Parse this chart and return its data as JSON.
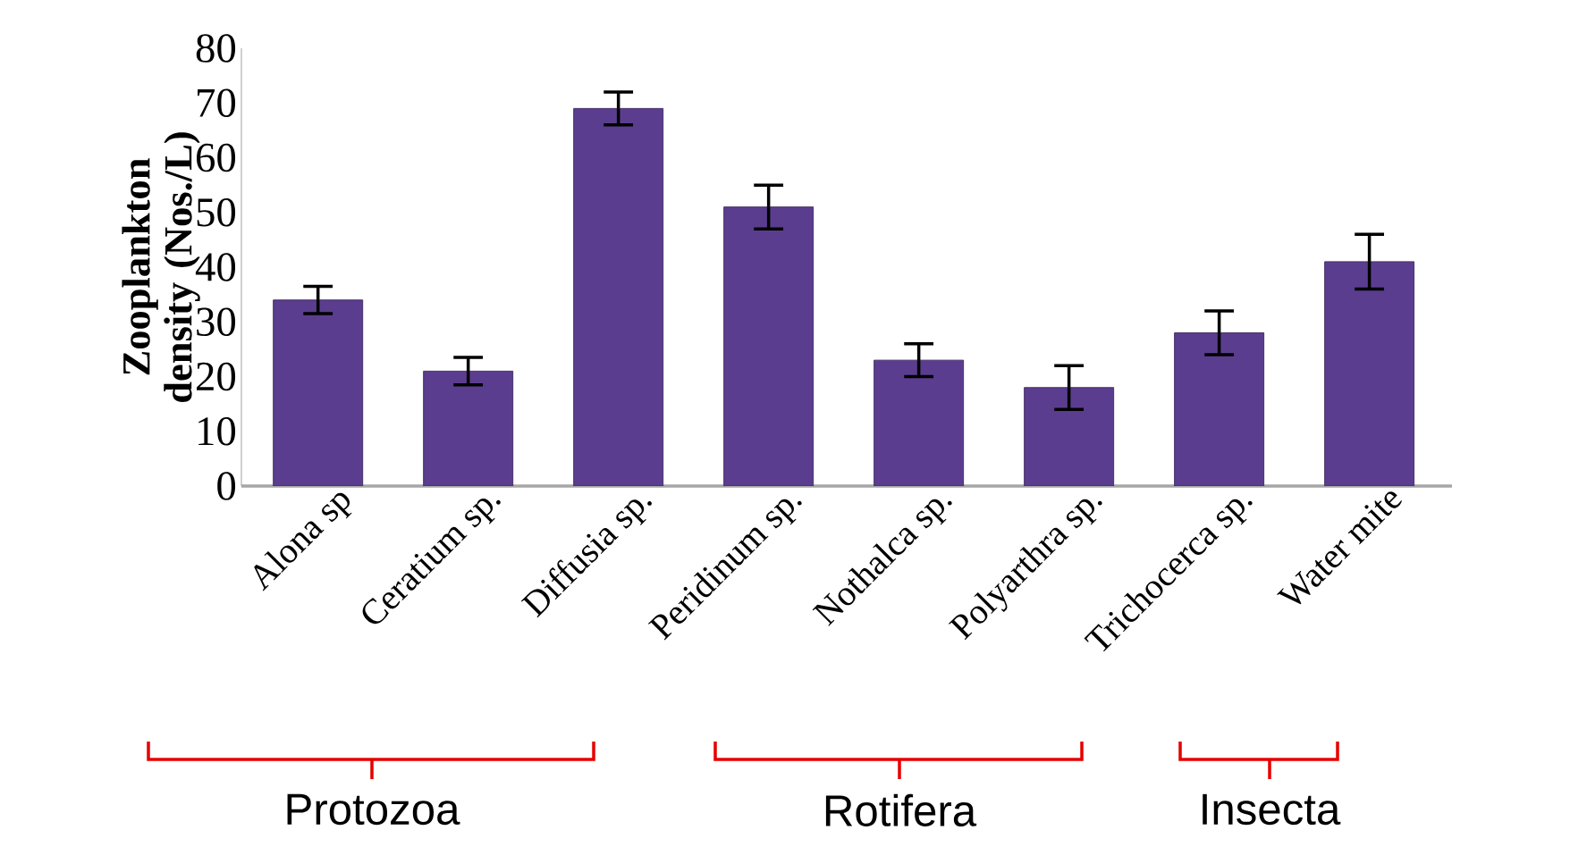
{
  "chart_data": {
    "type": "bar",
    "ylabel": "Zooplankton density (Nos./L)",
    "categories": [
      "Alona sp",
      "Ceratium sp.",
      "Diffusia sp.",
      "Peridinum sp.",
      "Nothalca sp.",
      "Polyarthra sp.",
      "Trichocerca sp.",
      "Water mite"
    ],
    "values": [
      34,
      21,
      69,
      51,
      23,
      18,
      28,
      41
    ],
    "errors": [
      2.5,
      2.5,
      3,
      4,
      3,
      4,
      4,
      5
    ],
    "color": "#5b3d8f",
    "ylim": [
      0,
      80
    ],
    "yticks": [
      0,
      10,
      20,
      30,
      40,
      50,
      60,
      70,
      80
    ],
    "grid": false,
    "annotations": [
      "Protozoa",
      "Rotifera",
      "Insecta"
    ]
  }
}
